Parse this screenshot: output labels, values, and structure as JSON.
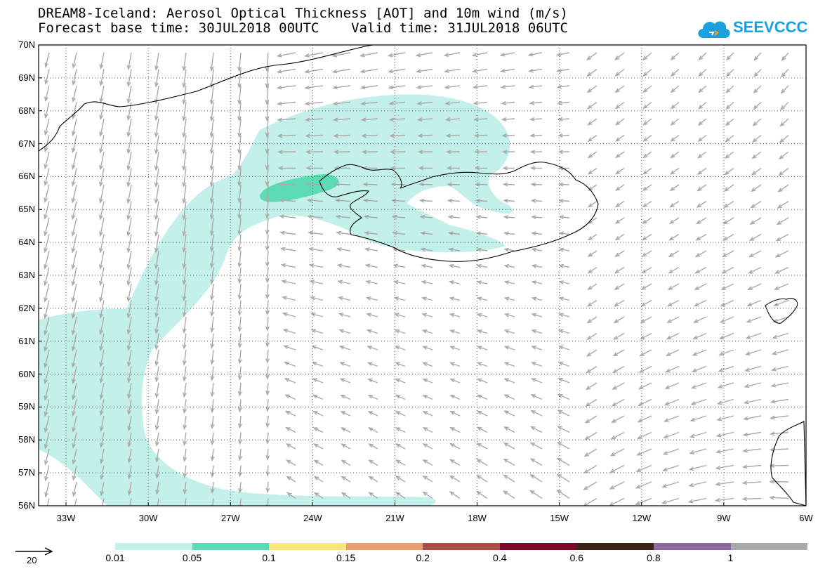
{
  "title": {
    "line1": "DREAM8-Iceland: Aerosol Optical Thickness [AOT] and 10m wind (m/s)",
    "line2": "Forecast base time: 30JUL2018 00UTC    Valid time: 31JUL2018 06UTC"
  },
  "logo": {
    "text": "SEEVCCC",
    "color": "#1aa0dc"
  },
  "map": {
    "lat_labels": [
      "70N",
      "69N",
      "68N",
      "67N",
      "66N",
      "65N",
      "64N",
      "63N",
      "62N",
      "61N",
      "60N",
      "59N",
      "58N",
      "57N",
      "56N"
    ],
    "lon_labels": [
      "33W",
      "30W",
      "27W",
      "24W",
      "21W",
      "18W",
      "15W",
      "12W",
      "9W",
      "6W"
    ],
    "extent": {
      "lon_min": -34,
      "lon_max": -6,
      "lat_min": 56,
      "lat_max": 70
    },
    "gridlines": "dotted",
    "plume_colors": {
      "aot_001_005": "#c4f0ea",
      "aot_005_01": "#5ddcb4"
    },
    "vector_color": "#aaaaaa"
  },
  "legend": {
    "labels": [
      "0.01",
      "0.05",
      "0.1",
      "0.15",
      "0.2",
      "0.4",
      "0.6",
      "0.8",
      "1"
    ],
    "colors": [
      "#c4f0ea",
      "#5ddcb4",
      "#f6e67c",
      "#e8a070",
      "#a85048",
      "#7a0a2a",
      "#3a2418",
      "#8a6aa0",
      "#aaaaaa"
    ],
    "reference_vector": {
      "value": "20"
    }
  }
}
